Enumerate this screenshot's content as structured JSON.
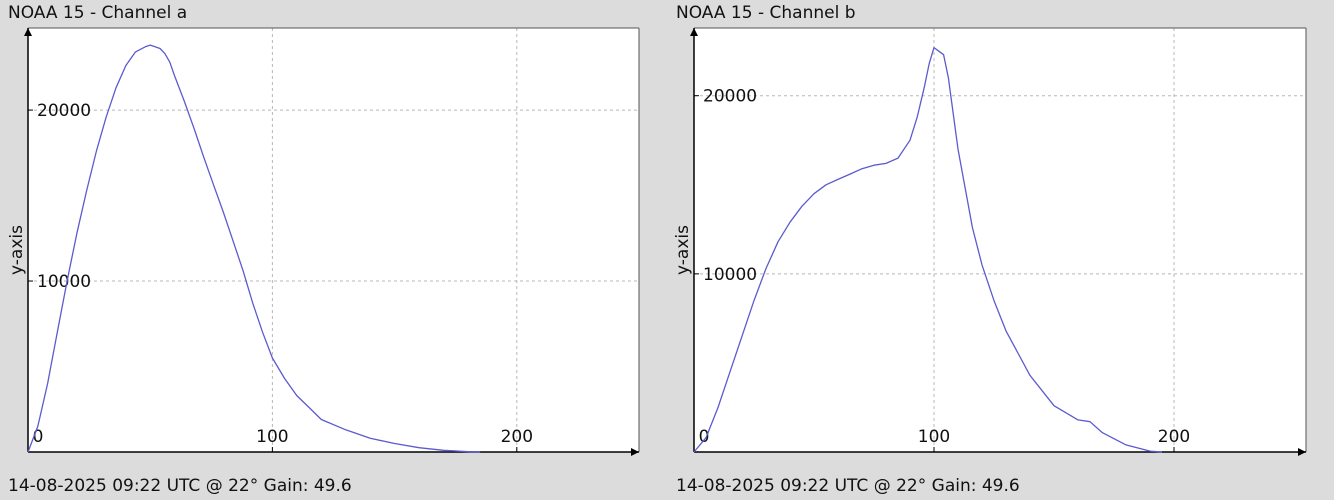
{
  "chart_data": [
    {
      "type": "line",
      "title": "NOAA 15 - Channel a",
      "footer": "14-08-2025 09:22 UTC @ 22° Gain: 49.6",
      "xlabel": "",
      "ylabel": "y-axis",
      "xlim": [
        0,
        250
      ],
      "ylim": [
        0,
        24800
      ],
      "xticks": [
        0,
        100,
        200
      ],
      "xtick_labels": [
        "0",
        "100",
        "200"
      ],
      "yticks": [
        10000,
        20000
      ],
      "ytick_labels": [
        "10000",
        "20000"
      ],
      "grid": true,
      "series": [
        {
          "color": "#5b5bcf",
          "x": [
            0,
            4,
            8,
            12,
            16,
            20,
            24,
            28,
            32,
            36,
            40,
            44,
            48,
            50,
            52,
            54,
            56,
            58,
            60,
            64,
            68,
            72,
            76,
            80,
            84,
            88,
            92,
            96,
            100,
            105,
            110,
            115,
            120,
            130,
            140,
            150,
            160,
            170,
            180,
            185
          ],
          "y": [
            0,
            1500,
            4000,
            7000,
            10000,
            12800,
            15300,
            17600,
            19600,
            21300,
            22600,
            23400,
            23700,
            23800,
            23700,
            23600,
            23300,
            22800,
            22000,
            20500,
            18900,
            17200,
            15600,
            14000,
            12300,
            10600,
            8700,
            7000,
            5500,
            4300,
            3300,
            2600,
            1900,
            1300,
            800,
            500,
            250,
            100,
            20,
            0
          ]
        }
      ]
    },
    {
      "type": "line",
      "title": "NOAA 15 - Channel b",
      "footer": "14-08-2025 09:22 UTC @ 22° Gain: 49.6",
      "xlabel": "",
      "ylabel": "y-axis",
      "xlim": [
        0,
        255
      ],
      "ylim": [
        0,
        23800
      ],
      "xticks": [
        0,
        100,
        200
      ],
      "xtick_labels": [
        "0",
        "100",
        "200"
      ],
      "yticks": [
        10000,
        20000
      ],
      "ytick_labels": [
        "10000",
        "20000"
      ],
      "grid": true,
      "series": [
        {
          "color": "#5b5bcf",
          "x": [
            0,
            5,
            10,
            15,
            20,
            25,
            30,
            35,
            40,
            45,
            50,
            55,
            60,
            65,
            70,
            75,
            80,
            85,
            90,
            93,
            96,
            98,
            100,
            102,
            104,
            106,
            108,
            110,
            113,
            116,
            120,
            125,
            130,
            140,
            150,
            160,
            165,
            170,
            180,
            190,
            195
          ],
          "y": [
            0,
            800,
            2500,
            4500,
            6500,
            8500,
            10300,
            11800,
            12900,
            13800,
            14500,
            15000,
            15300,
            15600,
            15900,
            16100,
            16200,
            16500,
            17500,
            18800,
            20500,
            21800,
            22700,
            22500,
            22300,
            21000,
            19000,
            17000,
            14800,
            12600,
            10500,
            8500,
            6800,
            4300,
            2600,
            1800,
            1700,
            1100,
            400,
            50,
            0
          ]
        }
      ]
    }
  ]
}
